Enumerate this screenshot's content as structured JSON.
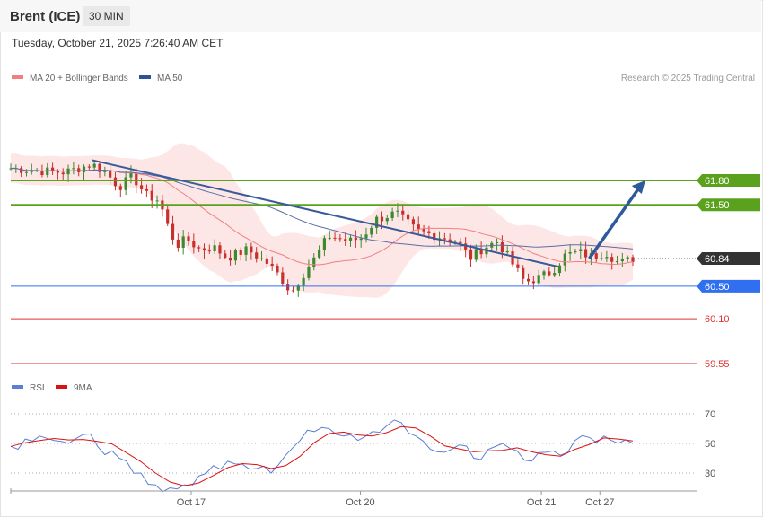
{
  "header": {
    "title": "Brent (ICE)",
    "timeframe": "30 MIN"
  },
  "datetime": "Tuesday, October 21, 2025 7:26:40 AM CET",
  "legend": [
    {
      "label": "MA 20 + Bollinger Bands",
      "color": "#f08080"
    },
    {
      "label": "MA 50",
      "color": "#2e5394"
    }
  ],
  "credit": "Research © 2025 Trading Central",
  "rsi_legend": [
    {
      "label": "RSI",
      "color": "#5b7fd6"
    },
    {
      "label": "9MA",
      "color": "#dd1111"
    }
  ],
  "chart_data": {
    "type": "line",
    "price_axis": {
      "range": [
        59.4,
        62.12
      ]
    },
    "levels": [
      {
        "value": 61.8,
        "label": "61.80",
        "color": "#5aa21e",
        "kind": "resistance"
      },
      {
        "value": 61.5,
        "label": "61.50",
        "color": "#5aa21e",
        "kind": "resistance"
      },
      {
        "value": 60.84,
        "label": "60.84",
        "color": "#333333",
        "kind": "last"
      },
      {
        "value": 60.5,
        "label": "60.50",
        "color": "#2f6ff0",
        "kind": "pivot"
      },
      {
        "value": 60.1,
        "label": "60.10",
        "color": "#dd3333",
        "kind": "support"
      },
      {
        "value": 59.55,
        "label": "59.55",
        "color": "#dd3333",
        "kind": "support"
      }
    ],
    "trendline": {
      "from": [
        0.13,
        62.05
      ],
      "to": [
        0.88,
        60.74
      ]
    },
    "forecast_arrow": {
      "from": [
        0.93,
        60.84
      ],
      "to": [
        1.02,
        61.8
      ]
    },
    "x_ticks": [
      {
        "label": "Oct 17",
        "pos": 0.29
      },
      {
        "label": "Oct 20",
        "pos": 0.562
      },
      {
        "label": "Oct 21",
        "pos": 0.853
      },
      {
        "label": "Oct 27",
        "pos": 0.947
      }
    ],
    "price_path": [
      [
        0.0,
        61.95
      ],
      [
        0.04,
        61.92
      ],
      [
        0.08,
        61.9
      ],
      [
        0.12,
        62.0
      ],
      [
        0.14,
        61.9
      ],
      [
        0.16,
        61.72
      ],
      [
        0.18,
        61.85
      ],
      [
        0.2,
        61.62
      ],
      [
        0.22,
        61.55
      ],
      [
        0.23,
        61.28
      ],
      [
        0.245,
        61.0
      ],
      [
        0.26,
        61.08
      ],
      [
        0.28,
        60.95
      ],
      [
        0.3,
        60.98
      ],
      [
        0.32,
        60.85
      ],
      [
        0.35,
        60.95
      ],
      [
        0.38,
        60.78
      ],
      [
        0.4,
        60.6
      ],
      [
        0.415,
        60.42
      ],
      [
        0.43,
        60.62
      ],
      [
        0.45,
        60.85
      ],
      [
        0.47,
        61.12
      ],
      [
        0.5,
        61.05
      ],
      [
        0.52,
        61.1
      ],
      [
        0.54,
        61.32
      ],
      [
        0.57,
        61.4
      ],
      [
        0.6,
        61.18
      ],
      [
        0.63,
        61.12
      ],
      [
        0.66,
        61.05
      ],
      [
        0.68,
        60.85
      ],
      [
        0.7,
        60.98
      ],
      [
        0.72,
        61.05
      ],
      [
        0.74,
        60.8
      ],
      [
        0.76,
        60.55
      ],
      [
        0.78,
        60.6
      ],
      [
        0.8,
        60.68
      ],
      [
        0.82,
        60.88
      ],
      [
        0.84,
        60.92
      ],
      [
        0.86,
        60.86
      ],
      [
        0.88,
        60.92
      ],
      [
        0.9,
        60.78
      ],
      [
        0.92,
        60.84
      ]
    ],
    "rsi": {
      "ticks": [
        70,
        50,
        30
      ],
      "ref_line": 50,
      "values": [
        48,
        53,
        55,
        52,
        50,
        56,
        48,
        45,
        38,
        30,
        22,
        20,
        22,
        28,
        35,
        38,
        36,
        33,
        30,
        42,
        52,
        58,
        60,
        55,
        52,
        58,
        62,
        64,
        55,
        46,
        44,
        49,
        40,
        46,
        50,
        45,
        38,
        44,
        42,
        52,
        54,
        55,
        50,
        50
      ]
    }
  }
}
